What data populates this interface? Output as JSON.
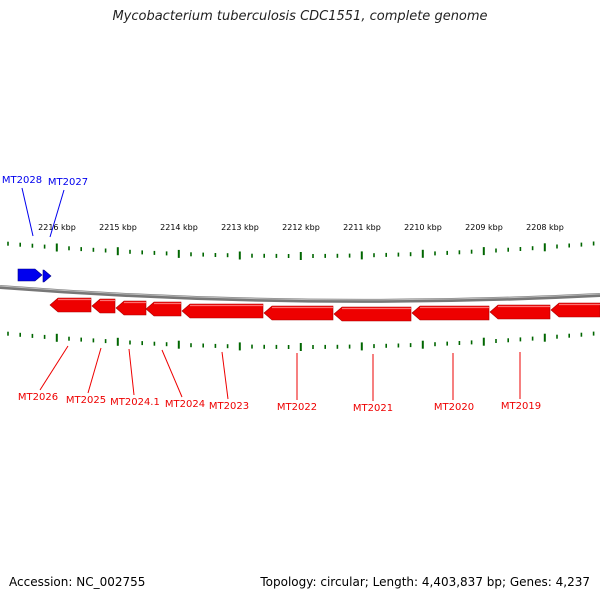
{
  "title": "Mycobacterium tuberculosis CDC1551, complete genome",
  "footer": {
    "accession": "Accession: NC_002755",
    "stats": "Topology: circular; Length: 4,403,837 bp; Genes: 4,237"
  },
  "colors": {
    "forward_gene": "#0000ee",
    "reverse_gene": "#ee0000",
    "ticks": "#006600",
    "backbone": "#888888"
  },
  "scale_labels": [
    "2216 kbp",
    "2215 kbp",
    "2214 kbp",
    "2213 kbp",
    "2212 kbp",
    "2211 kbp",
    "2210 kbp",
    "2209 kbp",
    "2208 kbp"
  ],
  "forward_genes": [
    "MT2028",
    "MT2027"
  ],
  "reverse_genes": [
    "MT2026",
    "MT2025",
    "MT2024.1",
    "MT2024",
    "MT2023",
    "MT2022",
    "MT2021",
    "MT2020",
    "MT2019"
  ]
}
